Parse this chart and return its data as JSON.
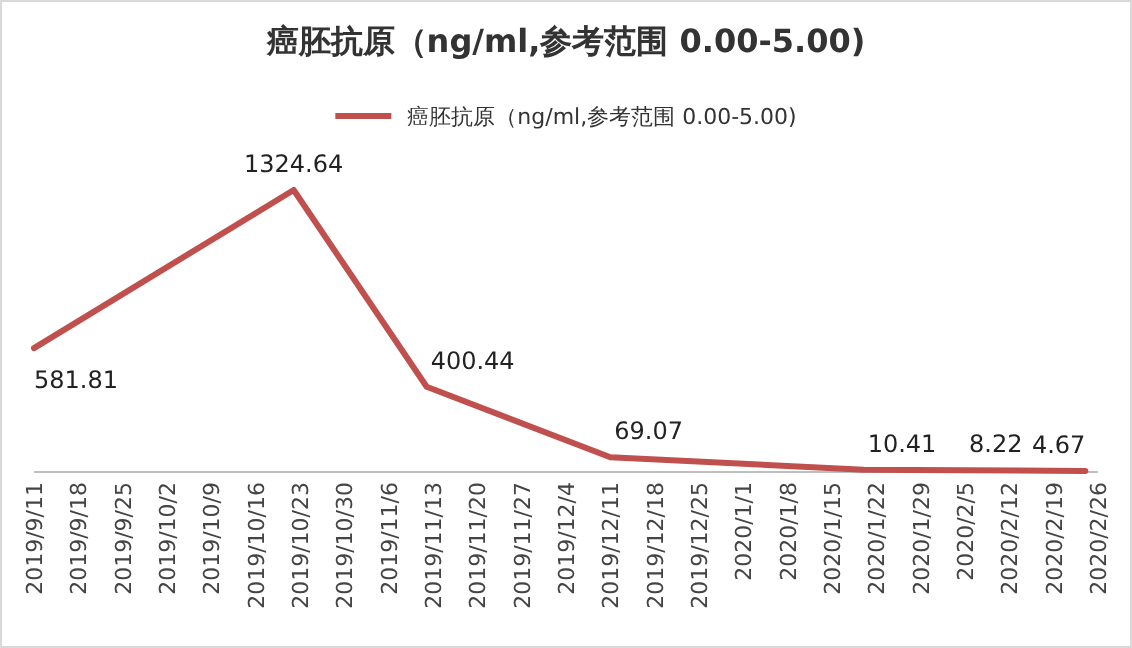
{
  "chart_data": {
    "type": "line",
    "title": "癌胚抗原（ng/ml,参考范围 0.00-5.00)",
    "x": [
      "2019-09-11",
      "2019-10-22",
      "2019-11-12",
      "2019-12-11",
      "2020-01-20",
      "2020-02-05",
      "2020-02-24"
    ],
    "series": [
      {
        "name": "癌胚抗原（ng/ml,参考范围 0.00-5.00)",
        "color": "#c0504d",
        "values": [
          581.81,
          1324.64,
          400.44,
          69.07,
          10.41,
          8.22,
          4.67
        ]
      }
    ],
    "data_labels": true,
    "legend": "top",
    "grid": false,
    "marker": "none",
    "line_style": "solid",
    "xlim": [
      "2019-09-11",
      "2020-02-26"
    ],
    "xticks": [
      {
        "value": "2019-09-11",
        "label": "2019/9/11"
      },
      {
        "value": "2019-09-18",
        "label": "2019/9/18"
      },
      {
        "value": "2019-09-25",
        "label": "2019/9/25"
      },
      {
        "value": "2019-10-02",
        "label": "2019/10/2"
      },
      {
        "value": "2019-10-09",
        "label": "2019/10/9"
      },
      {
        "value": "2019-10-16",
        "label": "2019/10/16"
      },
      {
        "value": "2019-10-23",
        "label": "2019/10/23"
      },
      {
        "value": "2019-10-30",
        "label": "2019/10/30"
      },
      {
        "value": "2019-11-06",
        "label": "2019/11/6"
      },
      {
        "value": "2019-11-13",
        "label": "2019/11/13"
      },
      {
        "value": "2019-11-20",
        "label": "2019/11/20"
      },
      {
        "value": "2019-11-27",
        "label": "2019/11/27"
      },
      {
        "value": "2019-12-04",
        "label": "2019/12/4"
      },
      {
        "value": "2019-12-11",
        "label": "2019/12/11"
      },
      {
        "value": "2019-12-18",
        "label": "2019/12/18"
      },
      {
        "value": "2019-12-25",
        "label": "2019/12/25"
      },
      {
        "value": "2020-01-01",
        "label": "2020/1/1"
      },
      {
        "value": "2020-01-08",
        "label": "2020/1/8"
      },
      {
        "value": "2020-01-15",
        "label": "2020/1/15"
      },
      {
        "value": "2020-01-22",
        "label": "2020/1/22"
      },
      {
        "value": "2020-01-29",
        "label": "2020/1/29"
      },
      {
        "value": "2020-02-05",
        "label": "2020/2/5"
      },
      {
        "value": "2020-02-12",
        "label": "2020/2/12"
      },
      {
        "value": "2020-02-19",
        "label": "2020/2/19"
      },
      {
        "value": "2020-02-26",
        "label": "2020/2/26"
      }
    ]
  }
}
